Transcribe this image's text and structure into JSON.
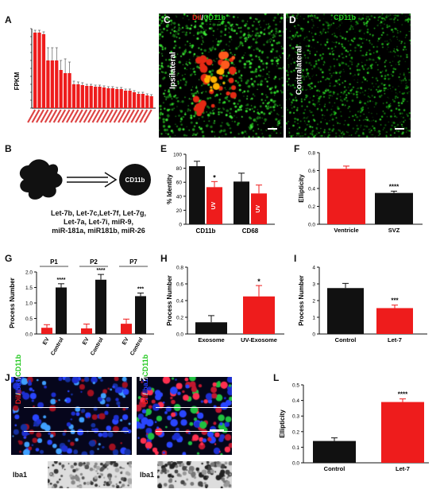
{
  "panels": {
    "A": "A",
    "B": "B",
    "C": "C",
    "D": "D",
    "E": "E",
    "F": "F",
    "G": "G",
    "H": "H",
    "I": "I",
    "J": "J",
    "K": "K",
    "L": "L"
  },
  "colors": {
    "red": "#ee1c1c",
    "black": "#111111",
    "green": "#22c81e",
    "blue": "#2a3cff"
  },
  "panel_c": {
    "dil": "DiI",
    "sep": "/",
    "cd11b": "CD11b",
    "side": "Ipsilateral"
  },
  "panel_d": {
    "cd11b": "CD11b",
    "side": "Contralateral"
  },
  "panel_b": {
    "cell_label": "CD11b",
    "mirna_lines": [
      "Let-7b, Let-7c,Let-7f, Let-7g,",
      "Let-7a, Let-7i, miR-9,",
      "miR-181a, miR181b, miR-26"
    ]
  },
  "panel_j": {
    "dil": "DiI",
    "iba1": "Iba1",
    "cd11b": "CD11b",
    "sep": "/",
    "bottom_label": "Iba1"
  },
  "panel_k": {
    "dil": "DiI",
    "iba1": "Iba1",
    "cd11b": "CD11b",
    "sep": "/",
    "bottom_label": "Iba1"
  },
  "chart_data": [
    {
      "panel": "A",
      "type": "bar",
      "ylabel": "FPKM",
      "values": [
        95,
        95,
        93,
        60,
        60,
        60,
        48,
        44,
        44,
        30,
        30,
        29,
        28,
        28,
        27,
        27,
        26,
        25,
        25,
        24,
        24,
        22,
        22,
        20,
        18,
        18,
        16,
        15
      ],
      "errors": [
        3,
        3,
        3,
        16,
        16,
        16,
        12,
        18,
        14,
        4,
        3,
        3,
        2,
        2,
        2,
        2,
        2,
        2,
        2,
        2,
        2,
        2,
        2,
        2,
        2,
        2,
        2,
        2
      ],
      "ylim": [
        0,
        100
      ],
      "color": "#ee1c1c"
    },
    {
      "panel": "E",
      "type": "bar",
      "ylabel": "% Identity",
      "categories": [
        "CD11b",
        "CD68"
      ],
      "yticks": [
        "0",
        "20",
        "40",
        "60",
        "80",
        "100"
      ],
      "ylim": [
        0,
        100
      ],
      "series": [
        {
          "values": [
            83,
            61
          ],
          "errors": [
            7,
            12
          ],
          "color": "#111111"
        },
        {
          "name": "UV",
          "values": [
            53,
            44
          ],
          "errors": [
            8,
            12
          ],
          "color": "#ee1c1c"
        }
      ],
      "annotations": [
        {
          "text": "*",
          "category": "CD11b"
        }
      ]
    },
    {
      "panel": "F",
      "type": "bar",
      "ylabel": "Ellipticity",
      "categories": [
        "Ventricle",
        "SVZ"
      ],
      "values": [
        0.62,
        0.35
      ],
      "errors": [
        0.03,
        0.02
      ],
      "colors": [
        "#ee1c1c",
        "#111111"
      ],
      "yticks": [
        "0.0",
        "0.2",
        "0.4",
        "0.6",
        "0.8"
      ],
      "ylim": [
        0,
        0.8
      ],
      "annotations": [
        {
          "text": "****",
          "category": "SVZ"
        }
      ]
    },
    {
      "panel": "G",
      "type": "bar",
      "ylabel": "Process Number",
      "groups": [
        "P1",
        "P2",
        "P7"
      ],
      "categories": [
        "EV",
        "Control",
        "EV",
        "Control",
        "EV",
        "Control"
      ],
      "values": [
        0.2,
        1.5,
        0.18,
        1.75,
        0.33,
        1.22
      ],
      "errors": [
        0.1,
        0.12,
        0.14,
        0.17,
        0.15,
        0.1
      ],
      "colors": [
        "#ee1c1c",
        "#111111",
        "#ee1c1c",
        "#111111",
        "#ee1c1c",
        "#111111"
      ],
      "yticks": [
        "0.0",
        "0.5",
        "1.0",
        "1.5",
        "2.0"
      ],
      "ylim": [
        0,
        2.0
      ],
      "annotations": [
        "****",
        "****",
        "***"
      ]
    },
    {
      "panel": "H",
      "type": "bar",
      "ylabel": "Process Number",
      "categories": [
        "Exosome",
        "UV-Exosome"
      ],
      "values": [
        0.14,
        0.45
      ],
      "errors": [
        0.08,
        0.13
      ],
      "colors": [
        "#111111",
        "#ee1c1c"
      ],
      "yticks": [
        "0.0",
        "0.2",
        "0.4",
        "0.6",
        "0.8"
      ],
      "ylim": [
        0,
        0.8
      ],
      "annotations": [
        {
          "text": "*",
          "category": "UV-Exosome"
        }
      ]
    },
    {
      "panel": "I",
      "type": "bar",
      "ylabel": "Process Number",
      "categories": [
        "Control",
        "Let-7"
      ],
      "values": [
        2.75,
        1.55
      ],
      "errors": [
        0.28,
        0.18
      ],
      "colors": [
        "#111111",
        "#ee1c1c"
      ],
      "yticks": [
        "0",
        "1",
        "2",
        "3",
        "4"
      ],
      "ylim": [
        0,
        4
      ],
      "annotations": [
        {
          "text": "***",
          "category": "Let-7"
        }
      ]
    },
    {
      "panel": "L",
      "type": "bar",
      "ylabel": "Ellipticity",
      "categories": [
        "Control",
        "Let-7"
      ],
      "values": [
        0.14,
        0.39
      ],
      "errors": [
        0.02,
        0.02
      ],
      "colors": [
        "#111111",
        "#ee1c1c"
      ],
      "yticks": [
        "0.0",
        "0.1",
        "0.2",
        "0.3",
        "0.4",
        "0.5"
      ],
      "ylim": [
        0,
        0.5
      ],
      "annotations": [
        {
          "text": "****",
          "category": "Let-7"
        }
      ]
    }
  ]
}
